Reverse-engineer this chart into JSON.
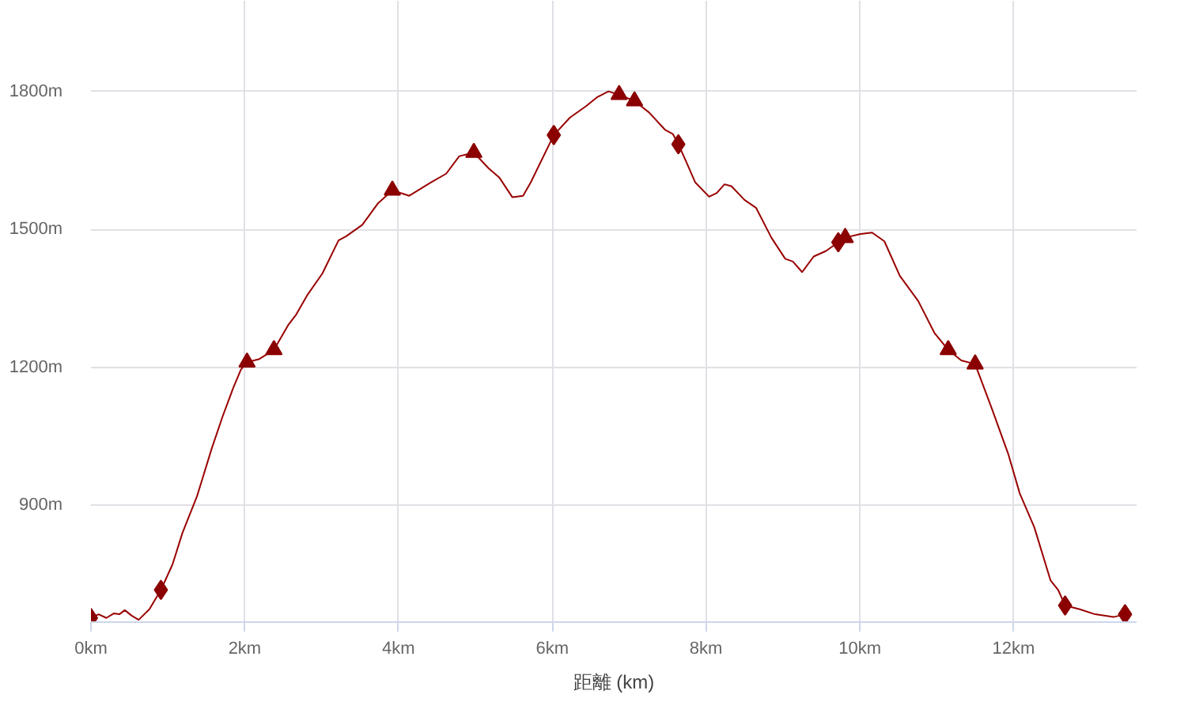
{
  "chart_data": {
    "type": "line",
    "xlabel": "距離 (km)",
    "xlim": [
      0,
      13.6
    ],
    "ylim": [
      646,
      1997
    ],
    "xticks": [
      {
        "value": 0,
        "label": "0km"
      },
      {
        "value": 2,
        "label": "2km"
      },
      {
        "value": 4,
        "label": "4km"
      },
      {
        "value": 6,
        "label": "6km"
      },
      {
        "value": 8,
        "label": "8km"
      },
      {
        "value": 10,
        "label": "10km"
      },
      {
        "value": 12,
        "label": "12km"
      }
    ],
    "yticks": [
      {
        "value": 900,
        "label": "900m"
      },
      {
        "value": 1200,
        "label": "1200m"
      },
      {
        "value": 1500,
        "label": "1500m"
      },
      {
        "value": 1800,
        "label": "1800m"
      }
    ],
    "grid": true,
    "line_style": "solid",
    "marker": "none",
    "series": [
      {
        "color": "#990000",
        "x": [
          0,
          0.1,
          0.2,
          0.3,
          0.37,
          0.44,
          0.53,
          0.62,
          0.76,
          0.91,
          1.06,
          1.19,
          1.38,
          1.57,
          1.71,
          1.85,
          1.95,
          2.03,
          2.19,
          2.38,
          2.57,
          2.67,
          2.81,
          3.01,
          3.22,
          3.32,
          3.53,
          3.73,
          3.92,
          4.14,
          4.42,
          4.62,
          4.79,
          4.98,
          5.17,
          5.31,
          5.48,
          5.62,
          5.72,
          6.02,
          6.23,
          6.44,
          6.58,
          6.73,
          6.87,
          7.07,
          7.26,
          7.47,
          7.57,
          7.64,
          7.74,
          7.86,
          8.04,
          8.14,
          8.24,
          8.33,
          8.5,
          8.65,
          8.85,
          9.03,
          9.13,
          9.25,
          9.4,
          9.56,
          9.72,
          9.81,
          10.01,
          10.16,
          10.32,
          10.52,
          10.76,
          10.97,
          11.15,
          11.32,
          11.5,
          11.72,
          11.93,
          12.08,
          12.27,
          12.48,
          12.58,
          12.67,
          12.86,
          13.06,
          13.3,
          13.45
        ],
        "values": [
          655,
          663,
          655,
          665,
          663,
          672,
          660,
          651,
          674,
          716,
          771,
          840,
          920,
          1023,
          1092,
          1155,
          1195,
          1211,
          1218,
          1238,
          1293,
          1315,
          1356,
          1404,
          1476,
          1485,
          1510,
          1556,
          1585,
          1573,
          1602,
          1621,
          1659,
          1667,
          1633,
          1613,
          1570,
          1573,
          1602,
          1705,
          1743,
          1768,
          1787,
          1800,
          1793,
          1779,
          1754,
          1716,
          1707,
          1685,
          1648,
          1602,
          1571,
          1579,
          1598,
          1594,
          1564,
          1547,
          1482,
          1436,
          1430,
          1407,
          1441,
          1453,
          1472,
          1482,
          1490,
          1493,
          1474,
          1399,
          1344,
          1275,
          1238,
          1215,
          1207,
          1109,
          1012,
          926,
          852,
          737,
          716,
          682,
          674,
          663,
          657,
          663
        ]
      },
      {
        "type": "scatter",
        "marker": "diamond",
        "color": "#8b0000",
        "x": [
          0,
          0.91,
          6.02,
          7.64,
          9.72,
          12.67,
          13.45
        ],
        "values": [
          655,
          716,
          1705,
          1685,
          1472,
          682,
          663
        ]
      },
      {
        "type": "scatter",
        "marker": "triangle",
        "color": "#8b0000",
        "x": [
          2.03,
          2.38,
          3.92,
          4.98,
          6.87,
          7.07,
          9.81,
          11.15,
          11.5
        ],
        "values": [
          1211,
          1238,
          1585,
          1667,
          1793,
          1779,
          1482,
          1238,
          1207
        ]
      }
    ]
  }
}
